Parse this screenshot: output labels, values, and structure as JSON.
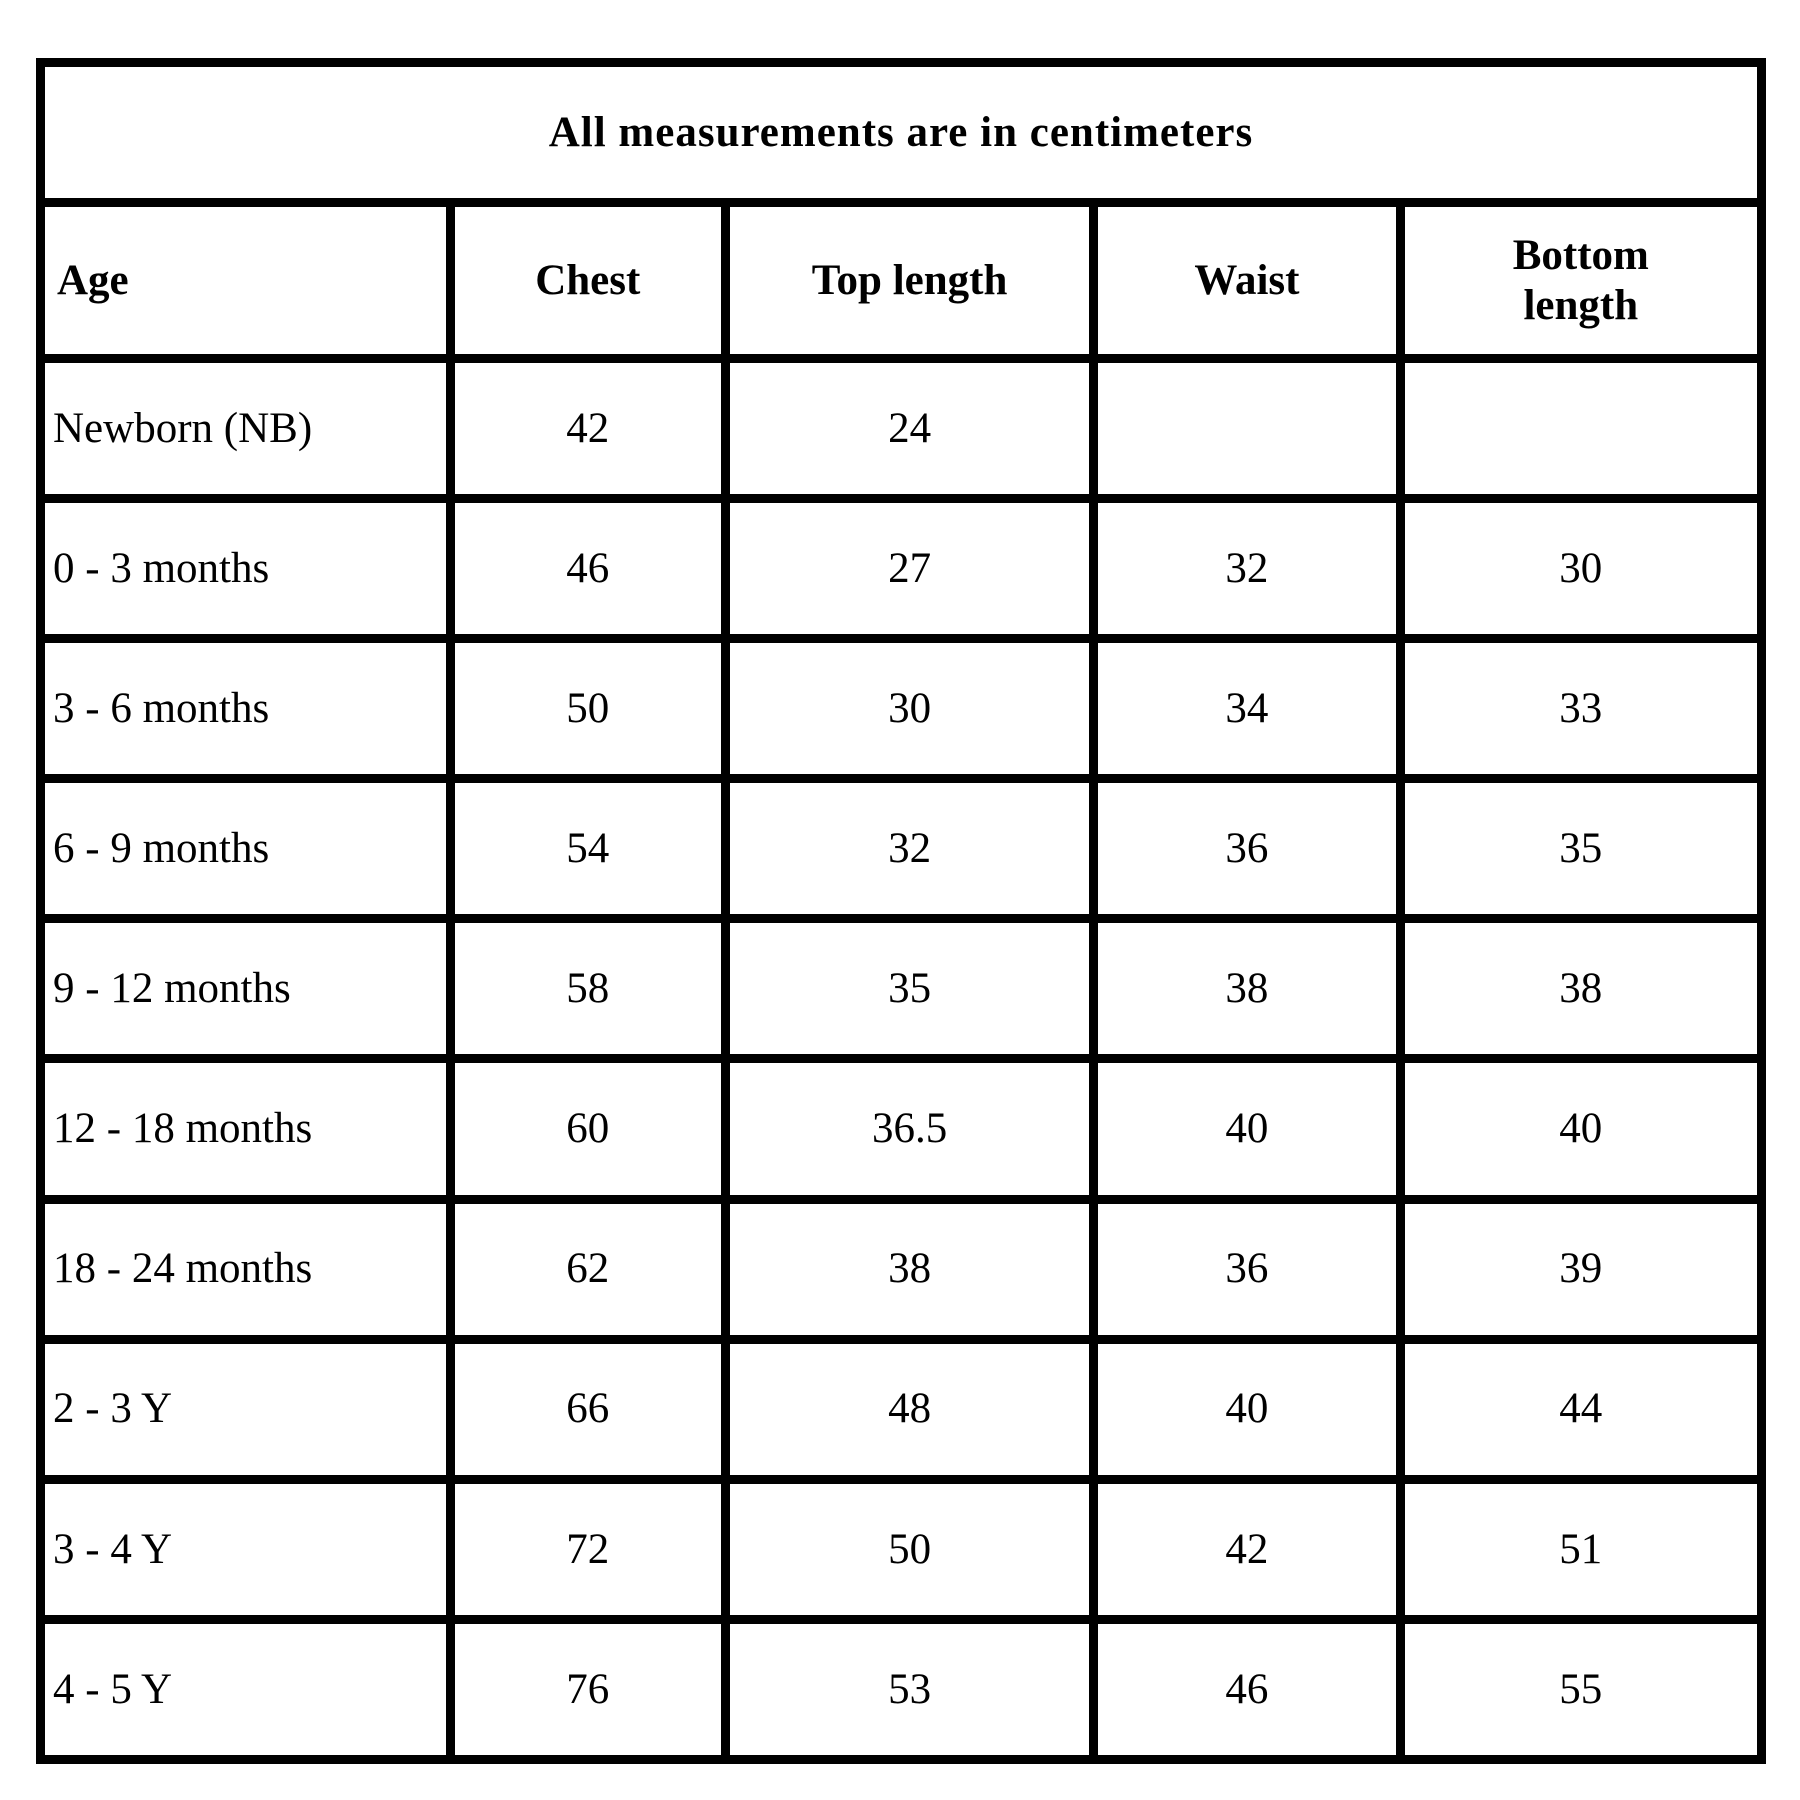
{
  "table": {
    "title": "All measurements are in centimeters",
    "columns": [
      "Age",
      "Chest",
      "Top length",
      "Waist",
      "Bottom length"
    ],
    "rows": [
      [
        "Newborn (NB)",
        "42",
        "24",
        "",
        ""
      ],
      [
        "0 - 3 months",
        "46",
        "27",
        "32",
        "30"
      ],
      [
        "3 - 6 months",
        "50",
        "30",
        "34",
        "33"
      ],
      [
        "6 - 9 months",
        "54",
        "32",
        "36",
        "35"
      ],
      [
        "9 - 12 months",
        "58",
        "35",
        "38",
        "38"
      ],
      [
        "12 - 18 months",
        "60",
        "36.5",
        "40",
        "40"
      ],
      [
        "18 - 24 months",
        "62",
        "38",
        "36",
        "39"
      ],
      [
        "2 - 3 Y",
        "66",
        "48",
        "40",
        "44"
      ],
      [
        "3 - 4 Y",
        "72",
        "50",
        "42",
        "51"
      ],
      [
        "4 - 5 Y",
        "76",
        "53",
        "46",
        "55"
      ]
    ]
  },
  "chart_data": {
    "type": "table",
    "title": "All measurements are in centimeters",
    "columns": [
      "Age",
      "Chest",
      "Top length",
      "Waist",
      "Bottom length"
    ],
    "rows": [
      {
        "age": "Newborn (NB)",
        "chest": 42,
        "top_length": 24,
        "waist": null,
        "bottom_length": null
      },
      {
        "age": "0 - 3 months",
        "chest": 46,
        "top_length": 27,
        "waist": 32,
        "bottom_length": 30
      },
      {
        "age": "3 - 6 months",
        "chest": 50,
        "top_length": 30,
        "waist": 34,
        "bottom_length": 33
      },
      {
        "age": "6 - 9 months",
        "chest": 54,
        "top_length": 32,
        "waist": 36,
        "bottom_length": 35
      },
      {
        "age": "9 - 12 months",
        "chest": 58,
        "top_length": 35,
        "waist": 38,
        "bottom_length": 38
      },
      {
        "age": "12 - 18 months",
        "chest": 60,
        "top_length": 36.5,
        "waist": 40,
        "bottom_length": 40
      },
      {
        "age": "18 - 24 months",
        "chest": 62,
        "top_length": 38,
        "waist": 36,
        "bottom_length": 39
      },
      {
        "age": "2 - 3 Y",
        "chest": 66,
        "top_length": 48,
        "waist": 40,
        "bottom_length": 44
      },
      {
        "age": "3 - 4 Y",
        "chest": 72,
        "top_length": 50,
        "waist": 42,
        "bottom_length": 51
      },
      {
        "age": "4 - 5 Y",
        "chest": 76,
        "top_length": 53,
        "waist": 46,
        "bottom_length": 55
      }
    ]
  }
}
